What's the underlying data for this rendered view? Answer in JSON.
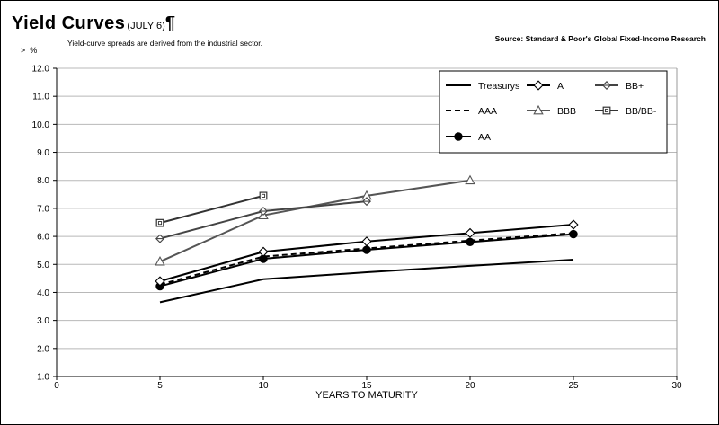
{
  "header": {
    "title": "Yield Curves",
    "title_date": "(JULY 6)",
    "title_mark": "¶",
    "subtitle": "Yield-curve spreads are derived from the industrial sector.",
    "source": "Source: Standard & Poor's Global Fixed-Income Research",
    "unit_arrow": ">",
    "unit": "%"
  },
  "chart_data": {
    "type": "line",
    "xlabel": "YEARS TO MATURITY",
    "ylabel": "%",
    "xlim": [
      0,
      30
    ],
    "ylim": [
      1.0,
      12.0
    ],
    "xticks": [
      "0",
      "5",
      "10",
      "15",
      "20",
      "25",
      "30"
    ],
    "yticks": [
      "1.0",
      "2.0",
      "3.0",
      "4.0",
      "5.0",
      "6.0",
      "7.0",
      "8.0",
      "9.0",
      "10.0",
      "11.0",
      "12.0"
    ],
    "grid": "horizontal",
    "legend_position": "top-right",
    "series": [
      {
        "name": "Treasurys",
        "marker": "none",
        "dash": "solid",
        "color": "#000000",
        "x": [
          5,
          10,
          15,
          20,
          25
        ],
        "y": [
          3.65,
          4.47,
          4.72,
          4.95,
          5.17
        ]
      },
      {
        "name": "AAA",
        "marker": "none",
        "dash": "dashed",
        "color": "#000000",
        "x": [
          5,
          10,
          15,
          20,
          25
        ],
        "y": [
          4.28,
          5.28,
          5.57,
          5.85,
          6.12
        ]
      },
      {
        "name": "AA",
        "marker": "filled-circle",
        "dash": "solid",
        "color": "#000000",
        "x": [
          5,
          10,
          15,
          20,
          25
        ],
        "y": [
          4.22,
          5.2,
          5.52,
          5.8,
          6.08
        ]
      },
      {
        "name": "A",
        "marker": "diamond",
        "dash": "solid",
        "color": "#000000",
        "x": [
          5,
          10,
          15,
          20,
          25
        ],
        "y": [
          4.4,
          5.45,
          5.82,
          6.12,
          6.42
        ]
      },
      {
        "name": "BBB",
        "marker": "triangle",
        "dash": "solid",
        "color": "#555555",
        "x": [
          5,
          10,
          15,
          20
        ],
        "y": [
          5.1,
          6.75,
          7.45,
          8.0
        ]
      },
      {
        "name": "BB+",
        "marker": "diamond-cross",
        "dash": "solid",
        "color": "#444444",
        "x": [
          5,
          10,
          15
        ],
        "y": [
          5.92,
          6.9,
          7.25
        ]
      },
      {
        "name": "BB/BB-",
        "marker": "square",
        "dash": "solid",
        "color": "#333333",
        "x": [
          5,
          10
        ],
        "y": [
          6.48,
          7.45
        ]
      }
    ],
    "legend": [
      [
        "Treasurys",
        "A",
        "BB+"
      ],
      [
        "AAA",
        "BBB",
        "BB/BB-"
      ],
      [
        "AA"
      ]
    ]
  }
}
